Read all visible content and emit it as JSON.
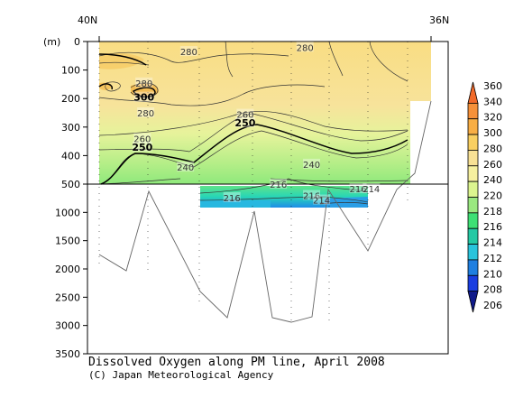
{
  "chart_data": {
    "type": "contour",
    "title": "Dissolved Oxygen along PM line, April 2008",
    "credit": "(C) Japan Meteorological Agency",
    "x_labels": [
      "40N",
      "36N"
    ],
    "y_unit": "(m)",
    "y_ticks_upper": [
      0,
      100,
      200,
      300,
      400,
      500
    ],
    "y_ticks_lower": [
      1000,
      1500,
      2000,
      2500,
      3000,
      3500
    ],
    "contour_labels_upper": [
      {
        "text": "280",
        "bold": false,
        "x": 0.27,
        "y": 35
      },
      {
        "text": "280",
        "bold": false,
        "x": 0.62,
        "y": 20
      },
      {
        "text": "280",
        "bold": false,
        "x": 0.135,
        "y": 145
      },
      {
        "text": "300",
        "bold": true,
        "x": 0.135,
        "y": 195
      },
      {
        "text": "280",
        "bold": false,
        "x": 0.14,
        "y": 250
      },
      {
        "text": "260",
        "bold": false,
        "x": 0.44,
        "y": 255
      },
      {
        "text": "250",
        "bold": true,
        "x": 0.44,
        "y": 285
      },
      {
        "text": "260",
        "bold": false,
        "x": 0.13,
        "y": 340
      },
      {
        "text": "250",
        "bold": true,
        "x": 0.13,
        "y": 370
      },
      {
        "text": "240",
        "bold": false,
        "x": 0.26,
        "y": 440
      },
      {
        "text": "240",
        "bold": false,
        "x": 0.64,
        "y": 430
      }
    ],
    "contour_labels_lower": [
      {
        "text": "216",
        "bold": false,
        "x": 0.4,
        "y": 740
      },
      {
        "text": "216",
        "bold": false,
        "x": 0.64,
        "y": 700
      },
      {
        "text": "214",
        "bold": false,
        "x": 0.67,
        "y": 780
      },
      {
        "text": "216",
        "bold": false,
        "x": 0.78,
        "y": 580
      },
      {
        "text": "214",
        "bold": false,
        "x": 0.82,
        "y": 580
      },
      {
        "text": "216",
        "bold": false,
        "x": 0.54,
        "y": 500
      }
    ],
    "colorbar_levels": [
      360,
      340,
      320,
      300,
      280,
      260,
      240,
      220,
      218,
      216,
      214,
      212,
      210,
      208,
      206
    ],
    "colorbar_colors": [
      "#f26a2a",
      "#f6913a",
      "#f8ae45",
      "#f9cf61",
      "#f8e195",
      "#f6f09f",
      "#dcf58f",
      "#9ae880",
      "#3ee075",
      "#25c9a4",
      "#2ac4dc",
      "#1f7fe0",
      "#1a3ee0",
      "#101a8a"
    ]
  }
}
